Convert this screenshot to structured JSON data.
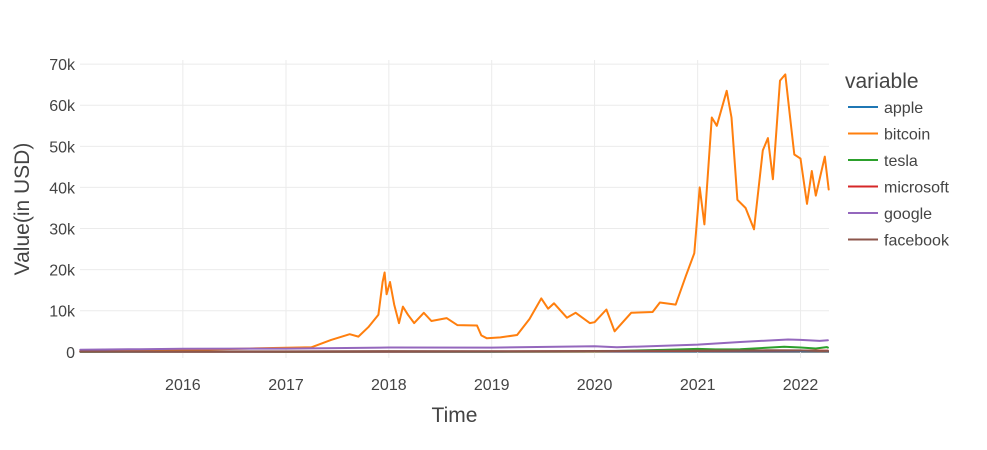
{
  "chart_data": {
    "type": "line",
    "xlabel": "Time",
    "ylabel": "Value(in USD)",
    "xlim": [
      "2015-01-01",
      "2022-04-12"
    ],
    "ylim": [
      -1500,
      71000
    ],
    "x_ticks": [
      {
        "date": "2016-01-01",
        "label": "2016"
      },
      {
        "date": "2017-01-01",
        "label": "2017"
      },
      {
        "date": "2018-01-01",
        "label": "2018"
      },
      {
        "date": "2019-01-01",
        "label": "2019"
      },
      {
        "date": "2020-01-01",
        "label": "2020"
      },
      {
        "date": "2021-01-01",
        "label": "2021"
      },
      {
        "date": "2022-01-01",
        "label": "2022"
      }
    ],
    "y_ticks": [
      {
        "value": 0,
        "label": "0"
      },
      {
        "value": 10000,
        "label": "10k"
      },
      {
        "value": 20000,
        "label": "20k"
      },
      {
        "value": 30000,
        "label": "30k"
      },
      {
        "value": 40000,
        "label": "40k"
      },
      {
        "value": 50000,
        "label": "50k"
      },
      {
        "value": 60000,
        "label": "60k"
      },
      {
        "value": 70000,
        "label": "70k"
      }
    ],
    "grid": true,
    "legend": {
      "title": "variable",
      "placement": "right"
    },
    "series": [
      {
        "name": "apple",
        "color": "#1f77b4",
        "points": [
          [
            "2015-01-02",
            27
          ],
          [
            "2016-01-01",
            26
          ],
          [
            "2017-01-01",
            29
          ],
          [
            "2018-01-01",
            43
          ],
          [
            "2019-01-01",
            39
          ],
          [
            "2020-01-01",
            75
          ],
          [
            "2021-01-01",
            132
          ],
          [
            "2022-01-01",
            182
          ],
          [
            "2022-04-08",
            170
          ]
        ]
      },
      {
        "name": "bitcoin",
        "color": "#ff7f0e",
        "points": [
          [
            "2015-01-02",
            315
          ],
          [
            "2015-06-01",
            230
          ],
          [
            "2016-01-01",
            430
          ],
          [
            "2016-06-15",
            690
          ],
          [
            "2017-01-01",
            1000
          ],
          [
            "2017-04-01",
            1100
          ],
          [
            "2017-06-10",
            2900
          ],
          [
            "2017-08-15",
            4300
          ],
          [
            "2017-09-15",
            3700
          ],
          [
            "2017-10-20",
            6000
          ],
          [
            "2017-11-25",
            9000
          ],
          [
            "2017-12-10",
            17000
          ],
          [
            "2017-12-17",
            19300
          ],
          [
            "2017-12-24",
            14000
          ],
          [
            "2018-01-05",
            17000
          ],
          [
            "2018-01-20",
            11500
          ],
          [
            "2018-02-06",
            7000
          ],
          [
            "2018-02-20",
            11000
          ],
          [
            "2018-03-10",
            9000
          ],
          [
            "2018-04-01",
            7000
          ],
          [
            "2018-05-05",
            9500
          ],
          [
            "2018-06-01",
            7500
          ],
          [
            "2018-07-25",
            8200
          ],
          [
            "2018-09-01",
            6500
          ],
          [
            "2018-11-10",
            6400
          ],
          [
            "2018-11-25",
            4000
          ],
          [
            "2018-12-15",
            3300
          ],
          [
            "2019-02-01",
            3500
          ],
          [
            "2019-04-01",
            4100
          ],
          [
            "2019-05-15",
            8000
          ],
          [
            "2019-06-26",
            13000
          ],
          [
            "2019-07-20",
            10500
          ],
          [
            "2019-08-10",
            11800
          ],
          [
            "2019-09-25",
            8300
          ],
          [
            "2019-10-26",
            9500
          ],
          [
            "2019-12-15",
            7000
          ],
          [
            "2020-01-01",
            7200
          ],
          [
            "2020-02-12",
            10300
          ],
          [
            "2020-03-12",
            5000
          ],
          [
            "2020-04-01",
            6500
          ],
          [
            "2020-05-10",
            9500
          ],
          [
            "2020-07-25",
            9700
          ],
          [
            "2020-08-20",
            12000
          ],
          [
            "2020-10-15",
            11500
          ],
          [
            "2020-11-20",
            18500
          ],
          [
            "2020-12-20",
            24000
          ],
          [
            "2021-01-08",
            40000
          ],
          [
            "2021-01-25",
            31000
          ],
          [
            "2021-02-20",
            57000
          ],
          [
            "2021-03-10",
            55000
          ],
          [
            "2021-04-14",
            63500
          ],
          [
            "2021-05-01",
            57000
          ],
          [
            "2021-05-22",
            37000
          ],
          [
            "2021-06-20",
            35000
          ],
          [
            "2021-07-20",
            29800
          ],
          [
            "2021-08-20",
            49000
          ],
          [
            "2021-09-07",
            52000
          ],
          [
            "2021-09-25",
            42000
          ],
          [
            "2021-10-20",
            66000
          ],
          [
            "2021-11-08",
            67500
          ],
          [
            "2021-11-25",
            57000
          ],
          [
            "2021-12-10",
            48000
          ],
          [
            "2022-01-01",
            47000
          ],
          [
            "2022-01-24",
            36000
          ],
          [
            "2022-02-10",
            44000
          ],
          [
            "2022-02-24",
            38000
          ],
          [
            "2022-03-28",
            47500
          ],
          [
            "2022-04-11",
            39500
          ]
        ]
      },
      {
        "name": "tesla",
        "color": "#2ca02c",
        "points": [
          [
            "2015-01-02",
            44
          ],
          [
            "2016-01-01",
            48
          ],
          [
            "2017-01-01",
            43
          ],
          [
            "2018-01-01",
            63
          ],
          [
            "2019-01-01",
            66
          ],
          [
            "2020-01-01",
            86
          ],
          [
            "2020-08-31",
            475
          ],
          [
            "2021-01-01",
            705
          ],
          [
            "2021-03-05",
            600
          ],
          [
            "2021-06-01",
            630
          ],
          [
            "2021-11-04",
            1230
          ],
          [
            "2022-01-01",
            1057
          ],
          [
            "2022-02-24",
            800
          ],
          [
            "2022-04-04",
            1145
          ],
          [
            "2022-04-08",
            1025
          ]
        ]
      },
      {
        "name": "microsoft",
        "color": "#d62728",
        "points": [
          [
            "2015-01-02",
            46
          ],
          [
            "2016-01-01",
            55
          ],
          [
            "2017-01-01",
            62
          ],
          [
            "2018-01-01",
            86
          ],
          [
            "2019-01-01",
            101
          ],
          [
            "2020-01-01",
            160
          ],
          [
            "2021-01-01",
            222
          ],
          [
            "2022-01-01",
            336
          ],
          [
            "2022-04-08",
            296
          ]
        ]
      },
      {
        "name": "google",
        "color": "#9467bd",
        "points": [
          [
            "2015-01-02",
            525
          ],
          [
            "2015-08-01",
            650
          ],
          [
            "2016-01-01",
            750
          ],
          [
            "2017-01-01",
            790
          ],
          [
            "2018-01-01",
            1050
          ],
          [
            "2019-01-01",
            1040
          ],
          [
            "2020-01-01",
            1360
          ],
          [
            "2020-03-20",
            1100
          ],
          [
            "2021-01-01",
            1750
          ],
          [
            "2021-06-01",
            2400
          ],
          [
            "2021-11-18",
            3000
          ],
          [
            "2022-01-01",
            2900
          ],
          [
            "2022-03-10",
            2650
          ],
          [
            "2022-04-08",
            2800
          ]
        ]
      },
      {
        "name": "facebook",
        "color": "#8c564b",
        "points": [
          [
            "2015-01-02",
            78
          ],
          [
            "2016-01-01",
            105
          ],
          [
            "2017-01-01",
            116
          ],
          [
            "2018-01-01",
            181
          ],
          [
            "2019-01-01",
            135
          ],
          [
            "2020-01-01",
            205
          ],
          [
            "2021-01-01",
            273
          ],
          [
            "2021-09-01",
            380
          ],
          [
            "2022-01-01",
            338
          ],
          [
            "2022-03-15",
            190
          ],
          [
            "2022-04-08",
            222
          ]
        ]
      }
    ]
  }
}
